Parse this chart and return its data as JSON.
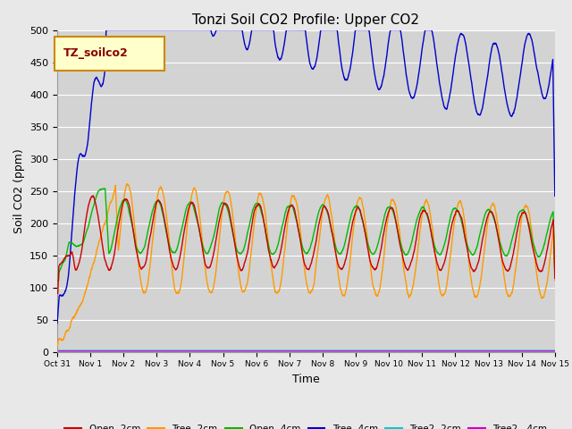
{
  "title": "Tonzi Soil CO2 Profile: Upper CO2",
  "xlabel": "Time",
  "ylabel": "Soil CO2 (ppm)",
  "ylim": [
    0,
    500
  ],
  "background_color": "#e8e8e8",
  "plot_bg_color": "#d3d3d3",
  "grid_color": "#ffffff",
  "legend_label": "TZ_soilco2",
  "legend_box_color": "#ffffcc",
  "legend_box_edge": "#cc8800",
  "series": {
    "open2": {
      "label": "Open -2cm",
      "color": "#cc0000"
    },
    "tree2": {
      "label": "Tree -2cm",
      "color": "#ff9900"
    },
    "open4": {
      "label": "Open -4cm",
      "color": "#00bb00"
    },
    "tree4": {
      "label": "Tree -4cm",
      "color": "#0000cc"
    },
    "tree2_2": {
      "label": "Tree2 -2cm",
      "color": "#00cccc"
    },
    "tree2_4": {
      "label": "Tree2 - 4cm",
      "color": "#cc00cc"
    }
  },
  "xtick_labels": [
    "Oct 31",
    "Nov 1",
    "Nov 2",
    "Nov 3",
    "Nov 4",
    "Nov 5",
    "Nov 6",
    "Nov 7",
    "Nov 8",
    "Nov 9",
    "Nov 10",
    "Nov 11",
    "Nov 12",
    "Nov 13",
    "Nov 14",
    "Nov 15"
  ],
  "ytick_labels": [
    0,
    50,
    100,
    150,
    200,
    250,
    300,
    350,
    400,
    450,
    500
  ]
}
